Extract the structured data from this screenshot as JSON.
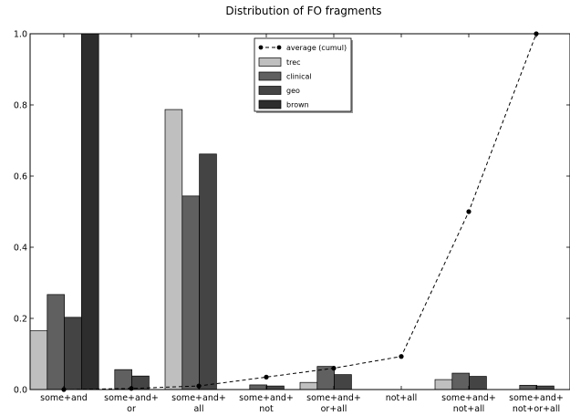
{
  "chart_data": {
    "type": "bar",
    "title": "Distribution of FO fragments",
    "xlabel": "",
    "ylabel": "",
    "ylim": [
      0,
      1.0
    ],
    "yticks": [
      "0.0",
      "0.2",
      "0.4",
      "0.6",
      "0.8",
      "1.0"
    ],
    "grid": false,
    "legend_position": "top-center",
    "categories": [
      [
        "some+and"
      ],
      [
        "some+and+",
        "or"
      ],
      [
        "some+and+",
        "all"
      ],
      [
        "some+and+",
        "not"
      ],
      [
        "some+and+",
        "or+all"
      ],
      [
        "not+all"
      ],
      [
        "some+and+",
        "not+all"
      ],
      [
        "some+and+",
        "not+or+all"
      ]
    ],
    "series": [
      {
        "name": "trec",
        "color": "#bfbfbf",
        "values": [
          0.165,
          0.0,
          0.787,
          0.0,
          0.02,
          0.0,
          0.028,
          0.0
        ]
      },
      {
        "name": "clinical",
        "color": "#606060",
        "values": [
          0.267,
          0.056,
          0.544,
          0.013,
          0.065,
          0.0,
          0.046,
          0.012
        ]
      },
      {
        "name": "geo",
        "color": "#444444",
        "values": [
          0.203,
          0.038,
          0.662,
          0.01,
          0.042,
          0.0,
          0.037,
          0.01
        ]
      },
      {
        "name": "brown",
        "color": "#2d2d2d",
        "values": [
          1.0,
          0.0,
          0.0,
          0.0,
          0.0,
          0.0,
          0.0,
          0.0
        ]
      }
    ],
    "line": {
      "name": "average (cumul)",
      "style": "dashed",
      "marker": "circle",
      "color": "#000000",
      "values": [
        0.0,
        0.003,
        0.01,
        0.035,
        0.06,
        0.093,
        0.5,
        1.0
      ]
    }
  }
}
